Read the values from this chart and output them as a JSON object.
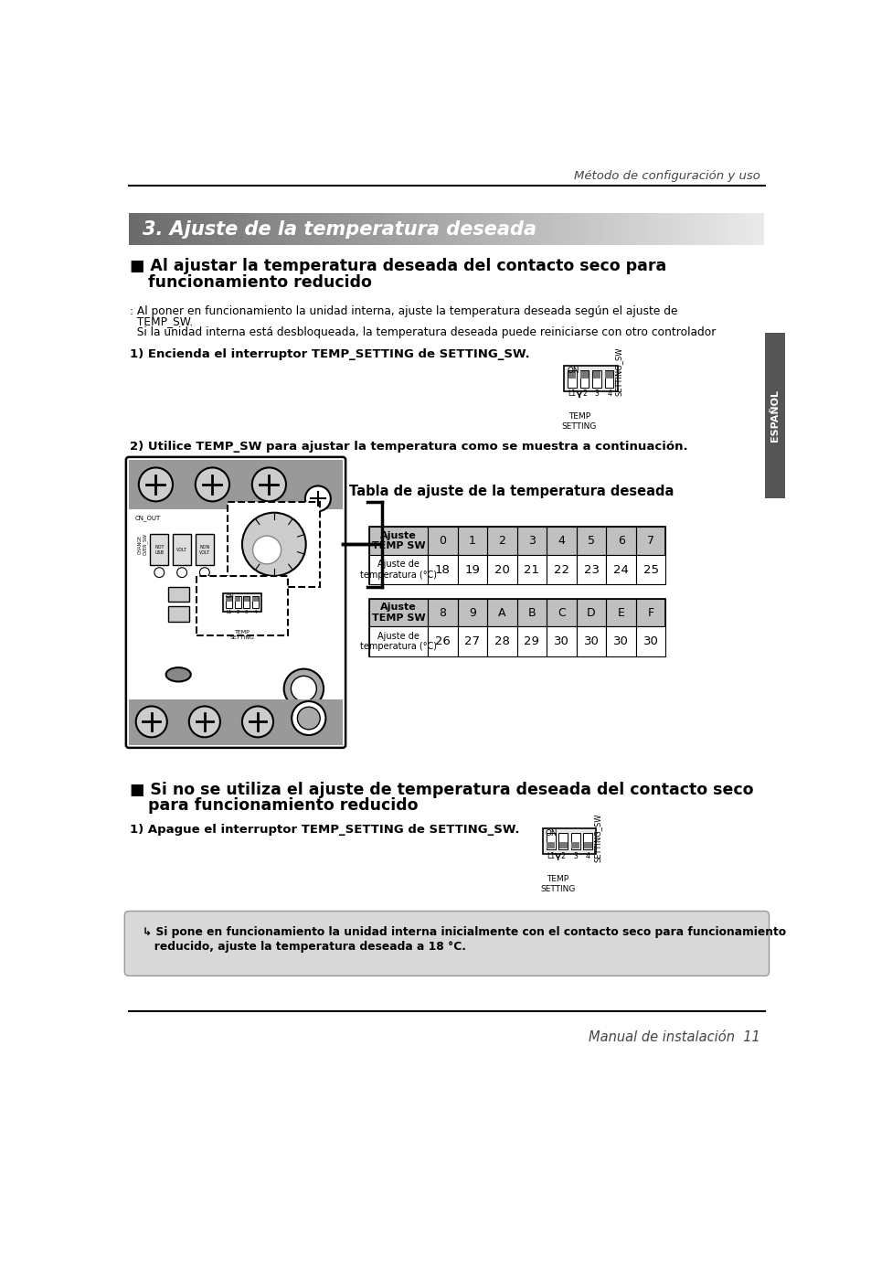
{
  "page_header_right": "Método de configuración y uso",
  "section_title": "3. Ajuste de la temperatura deseada",
  "section1_heading_line1": "■ Al ajustar la temperatura deseada del contacto seco para",
  "section1_heading_line2": "   funcionamiento reducido",
  "body_line1": ": Al poner en funcionamiento la unidad interna, ajuste la temperatura deseada según el ajuste de",
  "body_line2": "  TEMP_SW.",
  "body_line3": "  Si la unidad interna está desbloqueada, la temperatura deseada puede reiniciarse con otro controlador",
  "step1": "1) Encienda el interruptor TEMP_SETTING de SETTING_SW.",
  "step2": "2) Utilice TEMP_SW para ajustar la temperatura como se muestra a continuación.",
  "table_title": "Tabla de ajuste de la temperatura deseada",
  "table1_header": [
    "Ajuste\nTEMP SW",
    "0",
    "1",
    "2",
    "3",
    "4",
    "5",
    "6",
    "7"
  ],
  "table1_row": [
    "Ajuste de\ntemperatura (°C)",
    "18",
    "19",
    "20",
    "21",
    "22",
    "23",
    "24",
    "25"
  ],
  "table2_header": [
    "Ajuste\nTEMP SW",
    "8",
    "9",
    "A",
    "B",
    "C",
    "D",
    "E",
    "F"
  ],
  "table2_row": [
    "Ajuste de\ntemperatura (°C)",
    "26",
    "27",
    "28",
    "29",
    "30",
    "30",
    "30",
    "30"
  ],
  "section2_heading_line1": "■ Si no se utiliza el ajuste de temperatura deseada del contacto seco",
  "section2_heading_line2": "   para funcionamiento reducido",
  "step2_1": "1) Apague el interruptor TEMP_SETTING de SETTING_SW.",
  "note_line1": "↳ Si pone en funcionamiento la unidad interna inicialmente con el contacto seco para funcionamiento",
  "note_line2": "   reducido, ajuste la temperatura deseada a 18 °C.",
  "page_footer": "Manual de instalación  11",
  "sidebar_text": "ESPAÑOL"
}
